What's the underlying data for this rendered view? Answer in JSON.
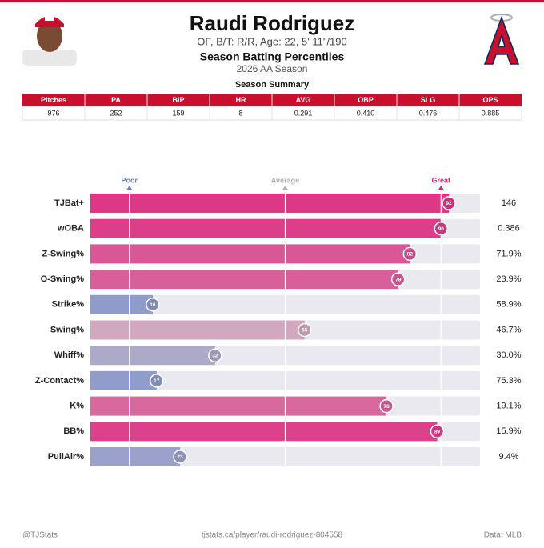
{
  "header": {
    "name": "Raudi Rodriguez",
    "info": "OF, B/T: R/R, Age: 22, 5' 11\"/190",
    "title": "Season Batting Percentiles",
    "season": "2026 AA Season"
  },
  "summary": {
    "title": "Season Summary",
    "columns": [
      "Pitches",
      "PA",
      "BIP",
      "HR",
      "AVG",
      "OBP",
      "SLG",
      "OPS"
    ],
    "row": [
      "976",
      "252",
      "159",
      "8",
      "0.291",
      "0.410",
      "0.476",
      "0.885"
    ]
  },
  "chart_data": {
    "type": "bar",
    "orientation": "horizontal",
    "categories": [
      "TJBat+",
      "wOBA",
      "Z-Swing%",
      "O-Swing%",
      "Strike%",
      "Swing%",
      "Whiff%",
      "Z-Contact%",
      "K%",
      "BB%",
      "PullAir%"
    ],
    "values": [
      92,
      90,
      82,
      79,
      16,
      55,
      32,
      17,
      76,
      89,
      23
    ],
    "stats": [
      "146",
      "0.386",
      "71.9%",
      "23.9%",
      "58.9%",
      "46.7%",
      "30.0%",
      "75.3%",
      "19.1%",
      "15.9%",
      "9.4%"
    ],
    "xlim": [
      0,
      100
    ],
    "xticks": [
      {
        "value": 10,
        "label": "Poor"
      },
      {
        "value": 50,
        "label": "Average"
      },
      {
        "value": 90,
        "label": "Great"
      }
    ]
  },
  "footer": {
    "left": "@TJStats",
    "center": "tjstats.ca/player/raudi-rodriguez-804558",
    "right": "Data: MLB"
  }
}
